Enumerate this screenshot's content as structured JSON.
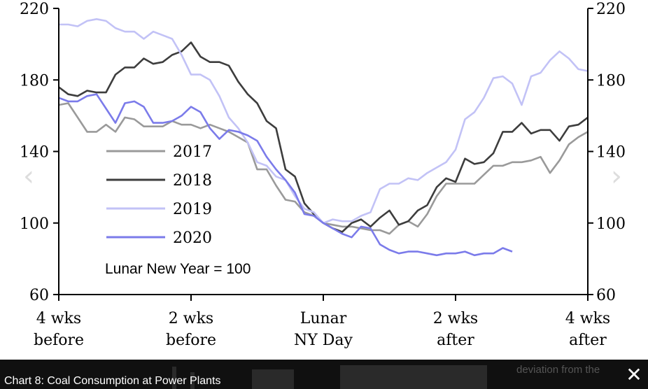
{
  "caption": "Chart 8: Coal Consumption at Power Plants",
  "caption_background_text": "deviation from the",
  "close_icon": "close-icon",
  "nav": {
    "prev_icon": "chevron-left-icon",
    "next_icon": "chevron-right-icon"
  },
  "chart_data": {
    "type": "line",
    "title": "",
    "xlabel": "",
    "ylabel": "",
    "annotation": "Lunar New Year = 100",
    "ylim": [
      60,
      220
    ],
    "yticks": [
      "60",
      "100",
      "140",
      "180",
      "220"
    ],
    "xlim": [
      -28,
      28
    ],
    "xticks": [
      {
        "value": -28,
        "line1": "4 wks",
        "line2": "before"
      },
      {
        "value": -14,
        "line1": "2 wks",
        "line2": "before"
      },
      {
        "value": 0,
        "line1": "Lunar",
        "line2": "NY Day"
      },
      {
        "value": 14,
        "line1": "2 wks",
        "line2": "after"
      },
      {
        "value": 28,
        "line1": "4 wks",
        "line2": "after"
      }
    ],
    "legend_position": "center-left",
    "series": [
      {
        "name": "2017",
        "color": "#9a9a9a",
        "points": [
          [
            -28,
            166
          ],
          [
            -27,
            167
          ],
          [
            -26,
            159
          ],
          [
            -25,
            151
          ],
          [
            -24,
            151
          ],
          [
            -23,
            155
          ],
          [
            -22,
            151
          ],
          [
            -21,
            159
          ],
          [
            -20,
            158
          ],
          [
            -19,
            154
          ],
          [
            -18,
            154
          ],
          [
            -17,
            154
          ],
          [
            -16,
            157
          ],
          [
            -15,
            155
          ],
          [
            -14,
            155
          ],
          [
            -13,
            153
          ],
          [
            -12,
            155
          ],
          [
            -11,
            153
          ],
          [
            -10,
            151
          ],
          [
            -9,
            148
          ],
          [
            -8,
            145
          ],
          [
            -7,
            130
          ],
          [
            -6,
            130
          ],
          [
            -5,
            121
          ],
          [
            -4,
            113
          ],
          [
            -3,
            112
          ],
          [
            -2,
            106
          ],
          [
            -1,
            104
          ],
          [
            0,
            100
          ],
          [
            1,
            99
          ],
          [
            2,
            98
          ],
          [
            3,
            98
          ],
          [
            4,
            97
          ],
          [
            5,
            96
          ],
          [
            6,
            96
          ],
          [
            7,
            94
          ],
          [
            8,
            99
          ],
          [
            9,
            101
          ],
          [
            10,
            98
          ],
          [
            11,
            105
          ],
          [
            12,
            115
          ],
          [
            13,
            122
          ],
          [
            14,
            122
          ],
          [
            15,
            122
          ],
          [
            16,
            122
          ],
          [
            17,
            127
          ],
          [
            18,
            132
          ],
          [
            19,
            132
          ],
          [
            20,
            134
          ],
          [
            21,
            134
          ],
          [
            22,
            135
          ],
          [
            23,
            137
          ],
          [
            24,
            128
          ],
          [
            25,
            135
          ],
          [
            26,
            144
          ],
          [
            27,
            148
          ],
          [
            28,
            151
          ]
        ]
      },
      {
        "name": "2018",
        "color": "#3d3d3d",
        "points": [
          [
            -28,
            176
          ],
          [
            -27,
            172
          ],
          [
            -26,
            171
          ],
          [
            -25,
            174
          ],
          [
            -24,
            173
          ],
          [
            -23,
            173
          ],
          [
            -22,
            183
          ],
          [
            -21,
            187
          ],
          [
            -20,
            187
          ],
          [
            -19,
            192
          ],
          [
            -18,
            189
          ],
          [
            -17,
            190
          ],
          [
            -16,
            194
          ],
          [
            -15,
            196
          ],
          [
            -14,
            201
          ],
          [
            -13,
            193
          ],
          [
            -12,
            190
          ],
          [
            -11,
            190
          ],
          [
            -10,
            188
          ],
          [
            -9,
            179
          ],
          [
            -8,
            172
          ],
          [
            -7,
            167
          ],
          [
            -6,
            157
          ],
          [
            -5,
            153
          ],
          [
            -4,
            130
          ],
          [
            -3,
            126
          ],
          [
            -2,
            111
          ],
          [
            -1,
            105
          ],
          [
            0,
            100
          ],
          [
            1,
            97
          ],
          [
            2,
            95
          ],
          [
            3,
            100
          ],
          [
            4,
            102
          ],
          [
            5,
            98
          ],
          [
            6,
            103
          ],
          [
            7,
            107
          ],
          [
            8,
            99
          ],
          [
            9,
            101
          ],
          [
            10,
            107
          ],
          [
            11,
            110
          ],
          [
            12,
            120
          ],
          [
            13,
            125
          ],
          [
            14,
            123
          ],
          [
            15,
            136
          ],
          [
            16,
            133
          ],
          [
            17,
            134
          ],
          [
            18,
            139
          ],
          [
            19,
            151
          ],
          [
            20,
            151
          ],
          [
            21,
            156
          ],
          [
            22,
            150
          ],
          [
            23,
            152
          ],
          [
            24,
            152
          ],
          [
            25,
            146
          ],
          [
            26,
            154
          ],
          [
            27,
            155
          ],
          [
            28,
            159
          ]
        ]
      },
      {
        "name": "2019",
        "color": "#c2c2f6",
        "points": [
          [
            -28,
            211
          ],
          [
            -27,
            211
          ],
          [
            -26,
            210
          ],
          [
            -25,
            213
          ],
          [
            -24,
            214
          ],
          [
            -23,
            213
          ],
          [
            -22,
            209
          ],
          [
            -21,
            207
          ],
          [
            -20,
            207
          ],
          [
            -19,
            203
          ],
          [
            -18,
            207
          ],
          [
            -17,
            205
          ],
          [
            -16,
            203
          ],
          [
            -15,
            194
          ],
          [
            -14,
            183
          ],
          [
            -13,
            183
          ],
          [
            -12,
            180
          ],
          [
            -11,
            171
          ],
          [
            -10,
            159
          ],
          [
            -9,
            153
          ],
          [
            -8,
            145
          ],
          [
            -7,
            134
          ],
          [
            -6,
            132
          ],
          [
            -5,
            126
          ],
          [
            -4,
            124
          ],
          [
            -3,
            115
          ],
          [
            -2,
            108
          ],
          [
            -1,
            106
          ],
          [
            0,
            100
          ],
          [
            1,
            102
          ],
          [
            2,
            101
          ],
          [
            3,
            101
          ],
          [
            4,
            104
          ],
          [
            5,
            106
          ],
          [
            6,
            119
          ],
          [
            7,
            122
          ],
          [
            8,
            122
          ],
          [
            9,
            125
          ],
          [
            10,
            124
          ],
          [
            11,
            128
          ],
          [
            12,
            131
          ],
          [
            13,
            134
          ],
          [
            14,
            141
          ],
          [
            15,
            158
          ],
          [
            16,
            162
          ],
          [
            17,
            170
          ],
          [
            18,
            181
          ],
          [
            19,
            182
          ],
          [
            20,
            178
          ],
          [
            21,
            166
          ],
          [
            22,
            182
          ],
          [
            23,
            184
          ],
          [
            24,
            191
          ],
          [
            25,
            196
          ],
          [
            26,
            192
          ],
          [
            27,
            186
          ],
          [
            28,
            185
          ]
        ]
      },
      {
        "name": "2020",
        "color": "#7b7bea",
        "points": [
          [
            -28,
            170
          ],
          [
            -27,
            168
          ],
          [
            -26,
            168
          ],
          [
            -25,
            171
          ],
          [
            -24,
            172
          ],
          [
            -23,
            164
          ],
          [
            -22,
            156
          ],
          [
            -21,
            167
          ],
          [
            -20,
            168
          ],
          [
            -19,
            165
          ],
          [
            -18,
            156
          ],
          [
            -17,
            156
          ],
          [
            -16,
            157
          ],
          [
            -15,
            160
          ],
          [
            -14,
            165
          ],
          [
            -13,
            162
          ],
          [
            -12,
            153
          ],
          [
            -11,
            147
          ],
          [
            -10,
            152
          ],
          [
            -9,
            151
          ],
          [
            -8,
            149
          ],
          [
            -7,
            146
          ],
          [
            -6,
            137
          ],
          [
            -5,
            130
          ],
          [
            -4,
            124
          ],
          [
            -3,
            117
          ],
          [
            -2,
            105
          ],
          [
            -1,
            104
          ],
          [
            0,
            100
          ],
          [
            1,
            97
          ],
          [
            2,
            94
          ],
          [
            3,
            92
          ],
          [
            4,
            98
          ],
          [
            5,
            97
          ],
          [
            6,
            88
          ],
          [
            7,
            85
          ],
          [
            8,
            83
          ],
          [
            9,
            84
          ],
          [
            10,
            84
          ],
          [
            11,
            83
          ],
          [
            12,
            82
          ],
          [
            13,
            83
          ],
          [
            14,
            83
          ],
          [
            15,
            84
          ],
          [
            16,
            82
          ],
          [
            17,
            83
          ],
          [
            18,
            83
          ],
          [
            19,
            86
          ],
          [
            20,
            84
          ]
        ]
      }
    ]
  }
}
